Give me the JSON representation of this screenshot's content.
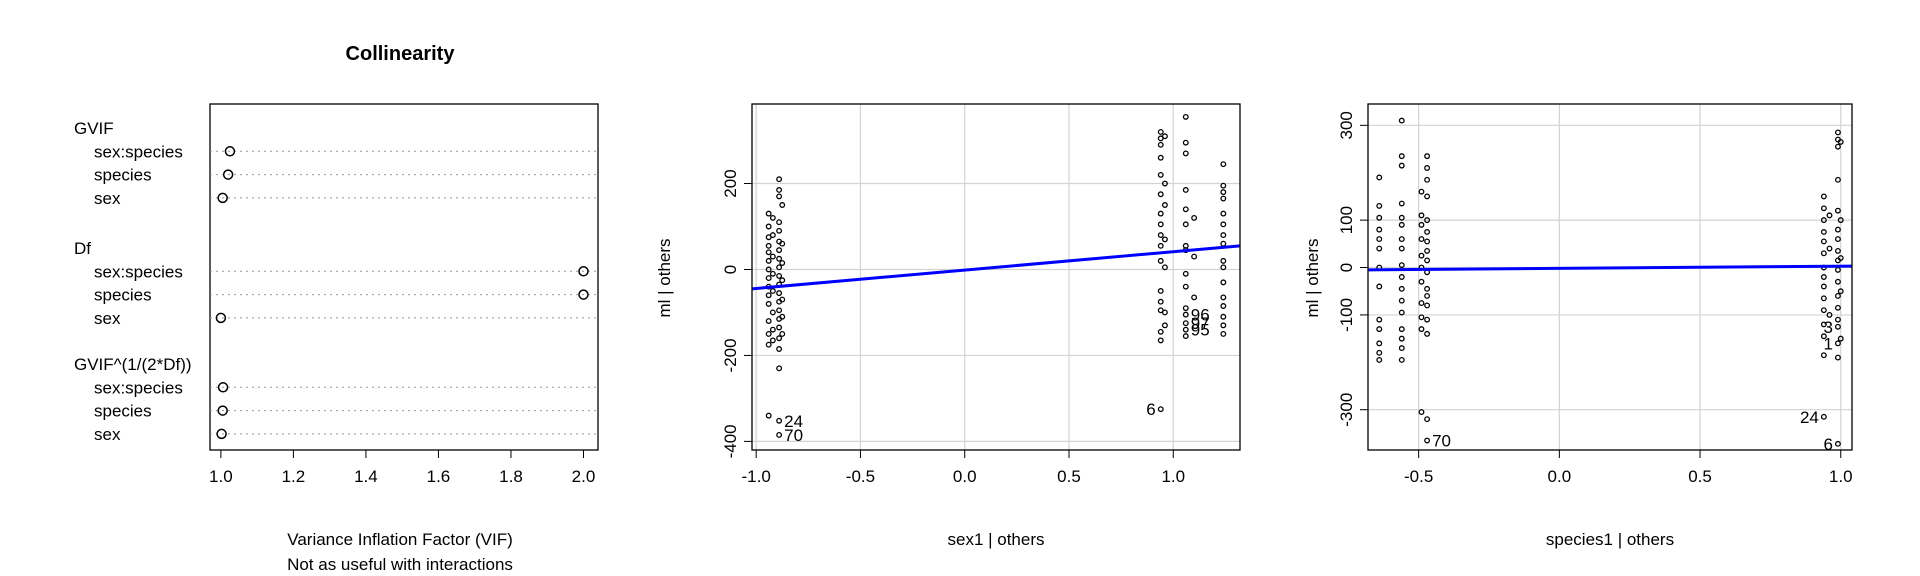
{
  "chart_data": [
    {
      "type": "dotchart",
      "title": "Collinearity",
      "xlabel": "Variance Inflation Factor (VIF)",
      "xlabel2": "Not as useful with interactions",
      "xlim": [
        0.97,
        2.04
      ],
      "xticks": [
        "1.0",
        "1.2",
        "1.4",
        "1.6",
        "1.8",
        "2.0"
      ],
      "groups": [
        {
          "name": "GVIF",
          "items": [
            {
              "label": "sex:species",
              "value": 1.025
            },
            {
              "label": "species",
              "value": 1.02
            },
            {
              "label": "sex",
              "value": 1.005
            }
          ]
        },
        {
          "name": "Df",
          "items": [
            {
              "label": "sex:species",
              "value": 2.0
            },
            {
              "label": "species",
              "value": 2.0
            },
            {
              "label": "sex",
              "value": 1.0
            }
          ]
        },
        {
          "name": "GVIF^(1/(2*Df))",
          "items": [
            {
              "label": "sex:species",
              "value": 1.006
            },
            {
              "label": "species",
              "value": 1.005
            },
            {
              "label": "sex",
              "value": 1.002
            }
          ]
        }
      ],
      "grid": "dotted",
      "point_color": "#000000"
    },
    {
      "type": "scatter",
      "xlabel": "sex1 | others",
      "ylabel": "ml | others",
      "xlim": [
        -1.02,
        1.32
      ],
      "ylim": [
        -420,
        385
      ],
      "xticks": [
        "-1.0",
        "-0.5",
        "0.0",
        "0.5",
        "1.0"
      ],
      "yticks": [
        "-400",
        "-200",
        "0",
        "200"
      ],
      "grid": true,
      "line": {
        "x": [
          -1.02,
          1.32
        ],
        "y": [
          -45,
          55
        ],
        "color": "#0000ff"
      },
      "points": [
        {
          "x": -0.94,
          "y": 130
        },
        {
          "x": -0.94,
          "y": 100
        },
        {
          "x": -0.94,
          "y": 75
        },
        {
          "x": -0.94,
          "y": 55
        },
        {
          "x": -0.94,
          "y": 40
        },
        {
          "x": -0.94,
          "y": 20
        },
        {
          "x": -0.94,
          "y": 0
        },
        {
          "x": -0.94,
          "y": -20
        },
        {
          "x": -0.94,
          "y": -40
        },
        {
          "x": -0.94,
          "y": -60
        },
        {
          "x": -0.94,
          "y": -80
        },
        {
          "x": -0.94,
          "y": -120
        },
        {
          "x": -0.94,
          "y": -150
        },
        {
          "x": -0.94,
          "y": -175
        },
        {
          "x": -0.94,
          "y": -340
        },
        {
          "x": -0.92,
          "y": 120
        },
        {
          "x": -0.92,
          "y": 80
        },
        {
          "x": -0.92,
          "y": 30
        },
        {
          "x": -0.92,
          "y": -10
        },
        {
          "x": -0.92,
          "y": -50
        },
        {
          "x": -0.92,
          "y": -100
        },
        {
          "x": -0.92,
          "y": -140
        },
        {
          "x": -0.92,
          "y": -165
        },
        {
          "x": -0.89,
          "y": 210
        },
        {
          "x": -0.89,
          "y": 185
        },
        {
          "x": -0.89,
          "y": 170
        },
        {
          "x": -0.89,
          "y": 110
        },
        {
          "x": -0.89,
          "y": 90
        },
        {
          "x": -0.89,
          "y": 65
        },
        {
          "x": -0.89,
          "y": 45
        },
        {
          "x": -0.89,
          "y": 25
        },
        {
          "x": -0.89,
          "y": 5
        },
        {
          "x": -0.89,
          "y": -15
        },
        {
          "x": -0.89,
          "y": -35
        },
        {
          "x": -0.89,
          "y": -55
        },
        {
          "x": -0.89,
          "y": -75
        },
        {
          "x": -0.89,
          "y": -95
        },
        {
          "x": -0.89,
          "y": -115
        },
        {
          "x": -0.89,
          "y": -135
        },
        {
          "x": -0.89,
          "y": -160
        },
        {
          "x": -0.89,
          "y": -185
        },
        {
          "x": -0.89,
          "y": -230
        },
        {
          "x": -0.89,
          "y": -352,
          "label": "24"
        },
        {
          "x": -0.89,
          "y": -385,
          "label": "70"
        },
        {
          "x": -0.875,
          "y": 150
        },
        {
          "x": -0.875,
          "y": 60
        },
        {
          "x": -0.875,
          "y": 15
        },
        {
          "x": -0.875,
          "y": -25
        },
        {
          "x": -0.875,
          "y": -70
        },
        {
          "x": -0.875,
          "y": -110
        },
        {
          "x": -0.875,
          "y": -150
        },
        {
          "x": 0.94,
          "y": 320
        },
        {
          "x": 0.94,
          "y": 305
        },
        {
          "x": 0.94,
          "y": 290
        },
        {
          "x": 0.94,
          "y": 260
        },
        {
          "x": 0.94,
          "y": 220
        },
        {
          "x": 0.94,
          "y": 175
        },
        {
          "x": 0.94,
          "y": 130
        },
        {
          "x": 0.94,
          "y": 105
        },
        {
          "x": 0.94,
          "y": 80
        },
        {
          "x": 0.94,
          "y": 55
        },
        {
          "x": 0.94,
          "y": 20
        },
        {
          "x": 0.94,
          "y": -50
        },
        {
          "x": 0.94,
          "y": -75
        },
        {
          "x": 0.94,
          "y": -95
        },
        {
          "x": 0.94,
          "y": -145
        },
        {
          "x": 0.94,
          "y": -165
        },
        {
          "x": 0.94,
          "y": -325,
          "label": "6"
        },
        {
          "x": 0.96,
          "y": 310
        },
        {
          "x": 0.96,
          "y": 200
        },
        {
          "x": 0.96,
          "y": 150
        },
        {
          "x": 0.96,
          "y": 70
        },
        {
          "x": 0.96,
          "y": 5
        },
        {
          "x": 0.96,
          "y": -100
        },
        {
          "x": 0.96,
          "y": -130
        },
        {
          "x": 1.06,
          "y": 355
        },
        {
          "x": 1.06,
          "y": 295
        },
        {
          "x": 1.06,
          "y": 270
        },
        {
          "x": 1.06,
          "y": 185
        },
        {
          "x": 1.06,
          "y": 140
        },
        {
          "x": 1.06,
          "y": 105
        },
        {
          "x": 1.06,
          "y": 55
        },
        {
          "x": 1.06,
          "y": 45
        },
        {
          "x": 1.06,
          "y": -10
        },
        {
          "x": 1.06,
          "y": -40
        },
        {
          "x": 1.06,
          "y": -90
        },
        {
          "x": 1.06,
          "y": -105,
          "label": "96"
        },
        {
          "x": 1.06,
          "y": -125,
          "label": "97"
        },
        {
          "x": 1.06,
          "y": -140,
          "label": "95"
        },
        {
          "x": 1.06,
          "y": -155
        },
        {
          "x": 1.1,
          "y": 120
        },
        {
          "x": 1.1,
          "y": 30
        },
        {
          "x": 1.1,
          "y": -65
        },
        {
          "x": 1.24,
          "y": 245
        },
        {
          "x": 1.24,
          "y": 195
        },
        {
          "x": 1.24,
          "y": 180
        },
        {
          "x": 1.24,
          "y": 165
        },
        {
          "x": 1.24,
          "y": 130
        },
        {
          "x": 1.24,
          "y": 105
        },
        {
          "x": 1.24,
          "y": 80
        },
        {
          "x": 1.24,
          "y": 60
        },
        {
          "x": 1.24,
          "y": 20
        },
        {
          "x": 1.24,
          "y": 5
        },
        {
          "x": 1.24,
          "y": -30
        },
        {
          "x": 1.24,
          "y": -65
        },
        {
          "x": 1.24,
          "y": -85
        },
        {
          "x": 1.24,
          "y": -110
        },
        {
          "x": 1.24,
          "y": -130
        },
        {
          "x": 1.24,
          "y": -150
        }
      ]
    },
    {
      "type": "scatter",
      "xlabel": "species1 | others",
      "ylabel": "ml | others",
      "xlim": [
        -0.68,
        1.04
      ],
      "ylim": [
        -385,
        345
      ],
      "xticks": [
        "-0.5",
        "0.0",
        "0.5",
        "1.0"
      ],
      "yticks": [
        "-300",
        "-100",
        "0",
        "100",
        "300"
      ],
      "grid": true,
      "line": {
        "x": [
          -0.68,
          1.04
        ],
        "y": [
          -5,
          3
        ],
        "color": "#0000ff"
      },
      "points": [
        {
          "x": -0.64,
          "y": 190
        },
        {
          "x": -0.64,
          "y": 130
        },
        {
          "x": -0.64,
          "y": 105
        },
        {
          "x": -0.64,
          "y": 80
        },
        {
          "x": -0.64,
          "y": 60
        },
        {
          "x": -0.64,
          "y": 40
        },
        {
          "x": -0.64,
          "y": 0
        },
        {
          "x": -0.64,
          "y": -40
        },
        {
          "x": -0.64,
          "y": -110
        },
        {
          "x": -0.64,
          "y": -130
        },
        {
          "x": -0.64,
          "y": -160
        },
        {
          "x": -0.64,
          "y": -180
        },
        {
          "x": -0.64,
          "y": -195
        },
        {
          "x": -0.56,
          "y": 310
        },
        {
          "x": -0.56,
          "y": 235
        },
        {
          "x": -0.56,
          "y": 215
        },
        {
          "x": -0.56,
          "y": 135
        },
        {
          "x": -0.56,
          "y": 105
        },
        {
          "x": -0.56,
          "y": 90
        },
        {
          "x": -0.56,
          "y": 60
        },
        {
          "x": -0.56,
          "y": 40
        },
        {
          "x": -0.56,
          "y": 5
        },
        {
          "x": -0.56,
          "y": -20
        },
        {
          "x": -0.56,
          "y": -45
        },
        {
          "x": -0.56,
          "y": -70
        },
        {
          "x": -0.56,
          "y": -95
        },
        {
          "x": -0.56,
          "y": -130
        },
        {
          "x": -0.56,
          "y": -150
        },
        {
          "x": -0.56,
          "y": -170
        },
        {
          "x": -0.56,
          "y": -195
        },
        {
          "x": -0.49,
          "y": 160
        },
        {
          "x": -0.49,
          "y": 110
        },
        {
          "x": -0.49,
          "y": 90
        },
        {
          "x": -0.49,
          "y": 60
        },
        {
          "x": -0.49,
          "y": 25
        },
        {
          "x": -0.49,
          "y": 0
        },
        {
          "x": -0.49,
          "y": -30
        },
        {
          "x": -0.49,
          "y": -75
        },
        {
          "x": -0.49,
          "y": -105
        },
        {
          "x": -0.49,
          "y": -130
        },
        {
          "x": -0.49,
          "y": -305
        },
        {
          "x": -0.47,
          "y": 235
        },
        {
          "x": -0.47,
          "y": 210
        },
        {
          "x": -0.47,
          "y": 185
        },
        {
          "x": -0.47,
          "y": 150
        },
        {
          "x": -0.47,
          "y": 100
        },
        {
          "x": -0.47,
          "y": 75
        },
        {
          "x": -0.47,
          "y": 55
        },
        {
          "x": -0.47,
          "y": 35
        },
        {
          "x": -0.47,
          "y": 15
        },
        {
          "x": -0.47,
          "y": -10
        },
        {
          "x": -0.47,
          "y": -45
        },
        {
          "x": -0.47,
          "y": -60
        },
        {
          "x": -0.47,
          "y": -80
        },
        {
          "x": -0.47,
          "y": -110
        },
        {
          "x": -0.47,
          "y": -140
        },
        {
          "x": -0.47,
          "y": -320
        },
        {
          "x": -0.47,
          "y": -365,
          "label": "70"
        },
        {
          "x": 0.94,
          "y": 150
        },
        {
          "x": 0.94,
          "y": 125
        },
        {
          "x": 0.94,
          "y": 100
        },
        {
          "x": 0.94,
          "y": 75
        },
        {
          "x": 0.94,
          "y": 55
        },
        {
          "x": 0.94,
          "y": 30
        },
        {
          "x": 0.94,
          "y": 0
        },
        {
          "x": 0.94,
          "y": -20
        },
        {
          "x": 0.94,
          "y": -40
        },
        {
          "x": 0.94,
          "y": -65
        },
        {
          "x": 0.94,
          "y": -90
        },
        {
          "x": 0.94,
          "y": -120
        },
        {
          "x": 0.94,
          "y": -145
        },
        {
          "x": 0.94,
          "y": -185
        },
        {
          "x": 0.94,
          "y": -315,
          "label": "24"
        },
        {
          "x": 0.96,
          "y": 110
        },
        {
          "x": 0.96,
          "y": 40
        },
        {
          "x": 0.96,
          "y": -100
        },
        {
          "x": 0.99,
          "y": 285
        },
        {
          "x": 0.99,
          "y": 270
        },
        {
          "x": 0.99,
          "y": 255
        },
        {
          "x": 0.99,
          "y": 185
        },
        {
          "x": 0.99,
          "y": 120
        },
        {
          "x": 0.99,
          "y": 80
        },
        {
          "x": 0.99,
          "y": 60
        },
        {
          "x": 0.99,
          "y": 35
        },
        {
          "x": 0.99,
          "y": 15
        },
        {
          "x": 0.99,
          "y": -5
        },
        {
          "x": 0.99,
          "y": -30
        },
        {
          "x": 0.99,
          "y": -60
        },
        {
          "x": 0.99,
          "y": -85
        },
        {
          "x": 0.99,
          "y": -110
        },
        {
          "x": 0.99,
          "y": -125,
          "label": "3"
        },
        {
          "x": 0.99,
          "y": -160,
          "label": "1"
        },
        {
          "x": 0.99,
          "y": -190
        },
        {
          "x": 0.99,
          "y": -372,
          "label": "6"
        },
        {
          "x": 1.0,
          "y": 265
        },
        {
          "x": 1.0,
          "y": 100
        },
        {
          "x": 1.0,
          "y": 20
        },
        {
          "x": 1.0,
          "y": -50
        },
        {
          "x": 1.0,
          "y": -150
        }
      ]
    }
  ]
}
